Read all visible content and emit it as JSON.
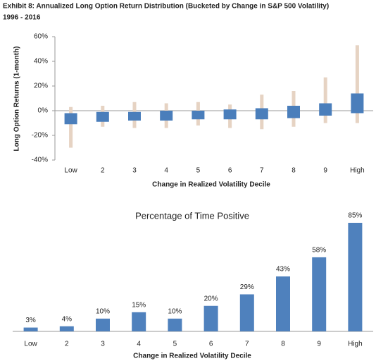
{
  "title": "Exhibit 8: Annualized Long Option Return Distribution (Bucketed by Change in S&P 500 Volatility)",
  "subtitle": "1996 - 2016",
  "chart_data": [
    {
      "type": "box",
      "y_label": "Long Option Returns (1-month)",
      "x_label": "Change in Realized Volatility Decile",
      "categories": [
        "Low",
        "2",
        "3",
        "4",
        "5",
        "6",
        "7",
        "8",
        "9",
        "High"
      ],
      "range_low": [
        -30,
        -13,
        -14,
        -14,
        -12,
        -14,
        -15,
        -13,
        -10,
        -10
      ],
      "range_high": [
        3,
        4,
        7,
        6,
        7,
        5,
        13,
        16,
        27,
        53
      ],
      "box_low": [
        -11,
        -9,
        -8,
        -8,
        -7,
        -7,
        -7,
        -6,
        -4,
        -2
      ],
      "box_high": [
        -2,
        -1,
        -1,
        0,
        0,
        1,
        2,
        4,
        6,
        14
      ],
      "range_color": "#e6d3c3",
      "box_color": "#4a7ebb",
      "ylim": [
        -40,
        60
      ],
      "yticks": [
        {
          "value": -40,
          "label": "-40%"
        },
        {
          "value": -20,
          "label": "-20%"
        },
        {
          "value": 0,
          "label": "0%"
        },
        {
          "value": 20,
          "label": "20%"
        },
        {
          "value": 40,
          "label": "40%"
        },
        {
          "value": 60,
          "label": "60%"
        }
      ]
    },
    {
      "type": "bar",
      "title": "Percentage of Time Positive",
      "x_label": "Change in Realized Volatility Decile",
      "categories": [
        "Low",
        "2",
        "3",
        "4",
        "5",
        "6",
        "7",
        "8",
        "9",
        "High"
      ],
      "values": [
        3,
        4,
        10,
        15,
        10,
        20,
        29,
        43,
        58,
        85
      ],
      "value_labels": [
        "3%",
        "4%",
        "10%",
        "15%",
        "10%",
        "20%",
        "29%",
        "43%",
        "58%",
        "85%"
      ],
      "color": "#4f81bd"
    }
  ]
}
